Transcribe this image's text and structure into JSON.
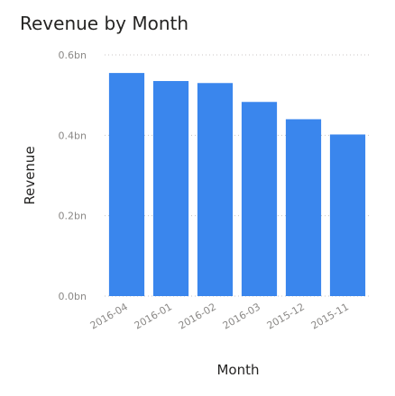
{
  "chart_data": {
    "type": "bar",
    "title": "Revenue by Month",
    "xlabel": "Month",
    "ylabel": "Revenue",
    "categories": [
      "2016-04",
      "2016-01",
      "2016-02",
      "2016-03",
      "2015-12",
      "2015-11"
    ],
    "values": [
      0.555,
      0.535,
      0.53,
      0.483,
      0.44,
      0.402
    ],
    "value_unit": "bn",
    "ylim": [
      0,
      0.6
    ],
    "yticks": [
      {
        "value": 0.0,
        "label": "0.0bn"
      },
      {
        "value": 0.2,
        "label": "0.2bn"
      },
      {
        "value": 0.4,
        "label": "0.4bn"
      },
      {
        "value": 0.6,
        "label": "0.6bn"
      }
    ],
    "bar_color": "#3a86ed",
    "grid": true,
    "legend": "none"
  }
}
